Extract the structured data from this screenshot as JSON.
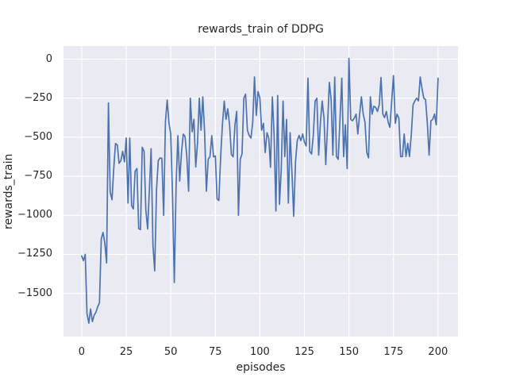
{
  "figure": {
    "background": "#ffffff"
  },
  "chart_data": {
    "type": "line",
    "title": "rewards_train of DDPG",
    "xlabel": "episodes",
    "ylabel": "rewards_train",
    "style": "seaborn-darkgrid",
    "grid": true,
    "legend": false,
    "axes_background": "#eaeaf2",
    "grid_color": "#ffffff",
    "line_color": "#4c72b0",
    "text_color": "#262626",
    "x_ticks": [
      0,
      25,
      50,
      75,
      100,
      125,
      150,
      175,
      200
    ],
    "y_ticks": [
      0,
      -250,
      -500,
      -750,
      -1000,
      -1250,
      -1500
    ],
    "xlim": [
      -10.2,
      211.2
    ],
    "ylim": [
      -1776,
      84
    ],
    "x_description": "episode index 0 to 200, one point per episode",
    "series": [
      {
        "name": "rewards_train",
        "values": [
          -1260,
          -1290,
          -1250,
          -1630,
          -1690,
          -1600,
          -1680,
          -1640,
          -1620,
          -1585,
          -1560,
          -1150,
          -1110,
          -1180,
          -1305,
          -280,
          -850,
          -900,
          -700,
          -540,
          -550,
          -667,
          -650,
          -590,
          -658,
          -505,
          -921,
          -505,
          -938,
          -959,
          -718,
          -700,
          -1085,
          -1091,
          -564,
          -590,
          -964,
          -1087,
          -836,
          -573,
          -1193,
          -1355,
          -836,
          -650,
          -632,
          -635,
          -1000,
          -403,
          -262,
          -411,
          -479,
          -887,
          -1430,
          -800,
          -490,
          -780,
          -600,
          -480,
          -495,
          -620,
          -845,
          -250,
          -465,
          -385,
          -690,
          -540,
          -250,
          -455,
          -242,
          -470,
          -845,
          -640,
          -625,
          -490,
          -625,
          -620,
          -895,
          -905,
          -625,
          -420,
          -268,
          -385,
          -318,
          -420,
          -610,
          -625,
          -420,
          -335,
          -1000,
          -640,
          -607,
          -250,
          -224,
          -455,
          -488,
          -505,
          -403,
          -114,
          -360,
          -207,
          -250,
          -454,
          -411,
          -598,
          -471,
          -505,
          -692,
          -242,
          -479,
          -972,
          -233,
          -930,
          -709,
          -268,
          -624,
          -386,
          -921,
          -471,
          -726,
          -1006,
          -657,
          -522,
          -488,
          -522,
          -479,
          -530,
          -556,
          -122,
          -590,
          -607,
          -488,
          -268,
          -250,
          -615,
          -403,
          -268,
          -377,
          -675,
          -420,
          -148,
          -260,
          -615,
          -115,
          -624,
          -641,
          -377,
          -122,
          -624,
          -420,
          -700,
          5,
          -386,
          -394,
          -377,
          -352,
          -479,
          -352,
          -241,
          -352,
          -403,
          -598,
          -632,
          -241,
          -352,
          -301,
          -309,
          -335,
          -292,
          -117,
          -352,
          -374,
          -335,
          -403,
          -437,
          -267,
          -105,
          -411,
          -352,
          -377,
          -624,
          -624,
          -479,
          -624,
          -539,
          -624,
          -479,
          -292,
          -267,
          -250,
          -267,
          -114,
          -190,
          -250,
          -258,
          -411,
          -615,
          -394,
          -386,
          -352,
          -420,
          -122
        ]
      }
    ]
  }
}
